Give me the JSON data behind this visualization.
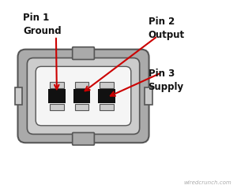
{
  "bg_color": "#ffffff",
  "connector_outer_color": "#aaaaaa",
  "connector_mid_color": "#cccccc",
  "connector_inner_color": "#e8e8e8",
  "connector_cavity_color": "#111111",
  "connector_line_color": "#555555",
  "arrow_color": "#cc0000",
  "text_color": "#111111",
  "watermark_color": "#aaaaaa",
  "pin1_label": "Pin 1\nGround",
  "pin2_label": "Pin 2\nOutput",
  "pin3_label": "Pin 3\nSupply",
  "watermark": "wiredcrunch.com"
}
